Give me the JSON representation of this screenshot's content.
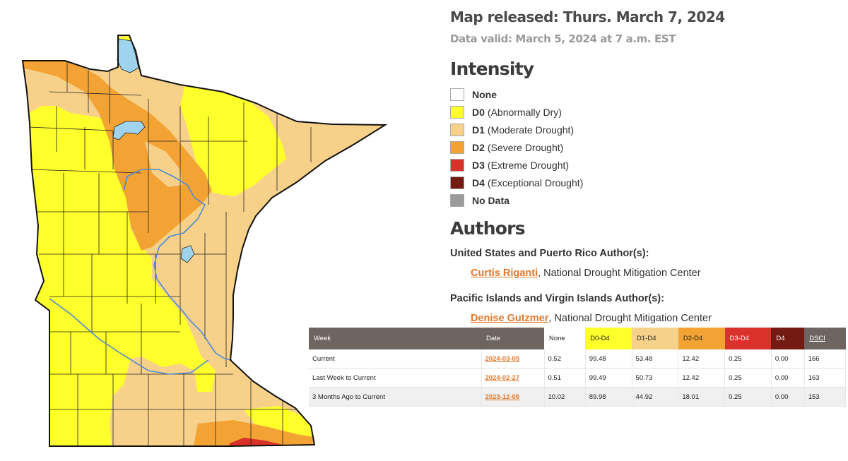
{
  "colors": {
    "none": "#ffffff",
    "d0": "#ffff2b",
    "d1": "#f7d18a",
    "d2": "#f2a334",
    "d3": "#d9322a",
    "d4": "#731a12",
    "nodata": "#9b9b9b",
    "water": "#9fd3ee",
    "link": "#e0792b"
  },
  "header": {
    "released": "Map released: Thurs. March 7, 2024",
    "valid": "Data valid: March 5, 2024 at 7 a.m. EST"
  },
  "legend": {
    "title": "Intensity",
    "items": [
      {
        "code": "None",
        "desc": "",
        "color": "#ffffff"
      },
      {
        "code": "D0",
        "desc": "(Abnormally Dry)",
        "color": "#ffff2b"
      },
      {
        "code": "D1",
        "desc": "(Moderate Drought)",
        "color": "#f7d18a"
      },
      {
        "code": "D2",
        "desc": "(Severe Drought)",
        "color": "#f2a334"
      },
      {
        "code": "D3",
        "desc": "(Extreme Drought)",
        "color": "#d9322a"
      },
      {
        "code": "D4",
        "desc": "(Exceptional Drought)",
        "color": "#731a12"
      },
      {
        "code": "No Data",
        "desc": "",
        "color": "#9b9b9b"
      }
    ]
  },
  "authors": {
    "title": "Authors",
    "us_group": "United States and Puerto Rico Author(s):",
    "us_name": "Curtis Riganti",
    "us_org": ", National Drought Mitigation Center",
    "pi_group": "Pacific Islands and Virgin Islands Author(s):",
    "pi_name": "Denise Gutzmer",
    "pi_org": ", National Drought Mitigation Center"
  },
  "table": {
    "headers": [
      "Week",
      "Date",
      "None",
      "D0-D4",
      "D1-D4",
      "D2-D4",
      "D3-D4",
      "D4",
      "DSCI"
    ],
    "rows": [
      [
        "Current",
        "2024-03-05",
        "0.52",
        "99.48",
        "53.48",
        "12.42",
        "0.25",
        "0.00",
        "166"
      ],
      [
        "Last Week to Current",
        "2024-02-27",
        "0.51",
        "99.49",
        "50.73",
        "12.42",
        "0.25",
        "0.00",
        "163"
      ],
      [
        "3 Months Ago to Current",
        "2023-12-05",
        "10.02",
        "89.98",
        "44.92",
        "18.01",
        "0.25",
        "0.00",
        "153"
      ]
    ]
  }
}
